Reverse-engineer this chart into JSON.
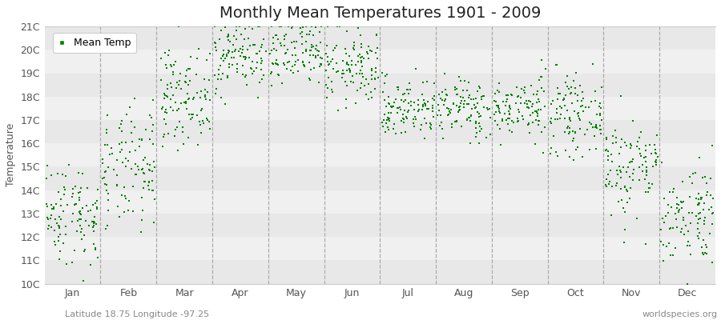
{
  "title": "Monthly Mean Temperatures 1901 - 2009",
  "ylabel": "Temperature",
  "xlabel_bottom_left": "Latitude 18.75 Longitude -97.25",
  "xlabel_bottom_right": "worldspecies.org",
  "legend_label": "Mean Temp",
  "dot_color": "#008000",
  "bg_color": "#ffffff",
  "stripe_color_odd": "#f0f0f0",
  "stripe_color_even": "#e8e8e8",
  "yticks": [
    10,
    11,
    12,
    13,
    14,
    15,
    16,
    17,
    18,
    19,
    20,
    21
  ],
  "ytick_labels": [
    "10C",
    "11C",
    "12C",
    "13C",
    "14C",
    "15C",
    "16C",
    "17C",
    "18C",
    "19C",
    "20C",
    "21C"
  ],
  "ylim": [
    10.0,
    21.0
  ],
  "months": [
    "Jan",
    "Feb",
    "Mar",
    "Apr",
    "May",
    "Jun",
    "Jul",
    "Aug",
    "Sep",
    "Oct",
    "Nov",
    "Dec"
  ],
  "month_means": [
    13.0,
    14.8,
    18.0,
    19.8,
    19.8,
    19.2,
    17.5,
    17.5,
    17.5,
    17.2,
    15.0,
    13.0
  ],
  "month_stds": [
    1.1,
    1.3,
    1.0,
    0.8,
    0.8,
    0.8,
    0.65,
    0.65,
    0.65,
    0.8,
    1.1,
    1.1
  ],
  "n_years": 109,
  "title_fontsize": 14,
  "axis_label_fontsize": 9,
  "tick_fontsize": 9,
  "legend_fontsize": 9,
  "dot_size": 3.5
}
